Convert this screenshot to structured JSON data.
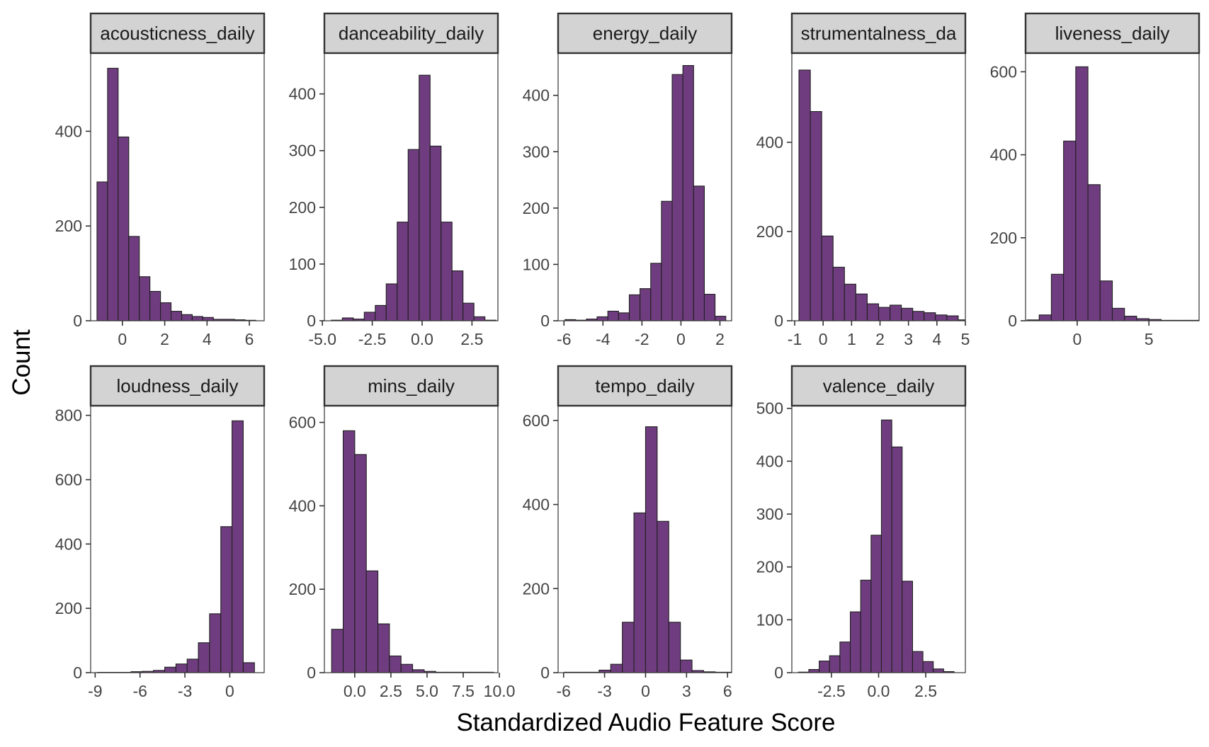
{
  "figure": {
    "ylabel": "Count",
    "xlabel": "Standardized Audio Feature Score",
    "bar_color": "#6f3d7f",
    "bar_outline": "#1f1f1f",
    "strip_color": "#d3d3d3"
  },
  "chart_data": [
    {
      "type": "bar",
      "title": "acousticness_daily",
      "xlim": [
        -1.5,
        6.7
      ],
      "ylim": [
        0,
        565
      ],
      "xticks": [
        0,
        2,
        4,
        6
      ],
      "xtick_labels": [
        "0",
        "2",
        "4",
        "6"
      ],
      "yticks": [
        0,
        200,
        400
      ],
      "ytick_labels": [
        "0",
        "200",
        "400"
      ],
      "bin_start": -1.2,
      "bin_width": 0.5,
      "values": [
        293,
        533,
        388,
        178,
        93,
        62,
        38,
        20,
        13,
        9,
        7,
        3,
        3,
        2,
        1
      ]
    },
    {
      "type": "bar",
      "title": "danceability_daily",
      "xlim": [
        -4.9,
        3.8
      ],
      "ylim": [
        0,
        472
      ],
      "xticks": [
        -5.0,
        -2.5,
        0.0,
        2.5
      ],
      "xtick_labels": [
        "-5.0",
        "-2.5",
        "0.0",
        "2.5"
      ],
      "yticks": [
        0,
        100,
        200,
        300,
        400
      ],
      "ytick_labels": [
        "0",
        "100",
        "200",
        "300",
        "400"
      ],
      "bin_start": -4.55,
      "bin_width": 0.55,
      "values": [
        1,
        5,
        3,
        15,
        27,
        65,
        174,
        302,
        433,
        308,
        174,
        88,
        31,
        7,
        1
      ]
    },
    {
      "type": "bar",
      "title": "energy_daily",
      "xlim": [
        -6.3,
        2.6
      ],
      "ylim": [
        0,
        475
      ],
      "xticks": [
        -6,
        -4,
        -2,
        0,
        2
      ],
      "xtick_labels": [
        "-6",
        "-4",
        "-2",
        "0",
        "2"
      ],
      "yticks": [
        0,
        100,
        200,
        300,
        400
      ],
      "ytick_labels": [
        "0",
        "100",
        "200",
        "300",
        "400"
      ],
      "bin_start": -5.95,
      "bin_width": 0.55,
      "values": [
        2,
        1,
        3,
        7,
        17,
        14,
        46,
        57,
        102,
        212,
        437,
        453,
        239,
        47,
        8
      ]
    },
    {
      "type": "bar",
      "title": "strumentalness_da",
      "xlim": [
        -1.1,
        5.0
      ],
      "ylim": [
        0,
        600
      ],
      "xticks": [
        -1,
        0,
        1,
        2,
        3,
        4,
        5
      ],
      "xtick_labels": [
        "-1",
        "0",
        "1",
        "2",
        "3",
        "4",
        "5"
      ],
      "yticks": [
        0,
        200,
        400
      ],
      "ytick_labels": [
        "0",
        "200",
        "400"
      ],
      "bin_start": -0.85,
      "bin_width": 0.4,
      "values": [
        562,
        469,
        190,
        120,
        82,
        60,
        38,
        30,
        35,
        28,
        21,
        18,
        13,
        11,
        2
      ]
    },
    {
      "type": "bar",
      "title": "liveness_daily",
      "xlim": [
        -3.6,
        8.5
      ],
      "ylim": [
        0,
        645
      ],
      "xticks": [
        0,
        5
      ],
      "xtick_labels": [
        "0",
        "5"
      ],
      "yticks": [
        0,
        200,
        400,
        600
      ],
      "ytick_labels": [
        "0",
        "200",
        "400",
        "600"
      ],
      "bin_start": -3.5,
      "bin_width": 0.85,
      "values": [
        2,
        14,
        112,
        433,
        612,
        328,
        96,
        30,
        11,
        5,
        3,
        1,
        1,
        1,
        1
      ]
    },
    {
      "type": "bar",
      "title": "loudness_daily",
      "xlim": [
        -9.3,
        2.3
      ],
      "ylim": [
        0,
        830
      ],
      "xticks": [
        -9,
        -6,
        -3,
        0
      ],
      "xtick_labels": [
        "-9",
        "-6",
        "-3",
        "0"
      ],
      "yticks": [
        0,
        200,
        400,
        600,
        800
      ],
      "ytick_labels": [
        "0",
        "200",
        "400",
        "600",
        "800"
      ],
      "bin_start": -8.85,
      "bin_width": 0.75,
      "values": [
        1,
        1,
        1,
        3,
        4,
        7,
        17,
        27,
        42,
        93,
        183,
        454,
        783,
        31
      ]
    },
    {
      "type": "bar",
      "title": "mins_daily",
      "xlim": [
        -2.1,
        9.9
      ],
      "ylim": [
        0,
        640
      ],
      "xticks": [
        0.0,
        2.5,
        5.0,
        7.5,
        10.0
      ],
      "xtick_labels": [
        "0.0",
        "2.5",
        "5.0",
        "7.5",
        "10.0"
      ],
      "yticks": [
        0,
        200,
        400,
        600
      ],
      "ytick_labels": [
        "0",
        "200",
        "400",
        "600"
      ],
      "bin_start": -1.6,
      "bin_width": 0.8,
      "values": [
        104,
        580,
        523,
        244,
        117,
        40,
        20,
        7,
        3,
        1,
        1,
        1,
        1,
        1
      ]
    },
    {
      "type": "bar",
      "title": "tempo_daily",
      "xlim": [
        -6.4,
        6.3
      ],
      "ylim": [
        0,
        635
      ],
      "xticks": [
        -6,
        -3,
        0,
        3,
        6
      ],
      "xtick_labels": [
        "-6",
        "-3",
        "0",
        "3",
        "6"
      ],
      "yticks": [
        0,
        200,
        400,
        600
      ],
      "ytick_labels": [
        "0",
        "200",
        "400",
        "600"
      ],
      "bin_start": -5.95,
      "bin_width": 0.85,
      "values": [
        1,
        1,
        1,
        6,
        20,
        120,
        380,
        585,
        360,
        120,
        30,
        5,
        2,
        1,
        1
      ]
    },
    {
      "type": "bar",
      "title": "valence_daily",
      "xlim": [
        -4.6,
        4.6
      ],
      "ylim": [
        0,
        505
      ],
      "xticks": [
        -2.5,
        0.0,
        2.5
      ],
      "xtick_labels": [
        "-2.5",
        "0.0",
        "2.5"
      ],
      "yticks": [
        0,
        100,
        200,
        300,
        400,
        500
      ],
      "ytick_labels": [
        "0",
        "100",
        "200",
        "300",
        "400",
        "500"
      ],
      "bin_start": -4.25,
      "bin_width": 0.55,
      "values": [
        1,
        6,
        22,
        32,
        58,
        115,
        175,
        260,
        478,
        427,
        173,
        40,
        21,
        7,
        2
      ]
    }
  ]
}
